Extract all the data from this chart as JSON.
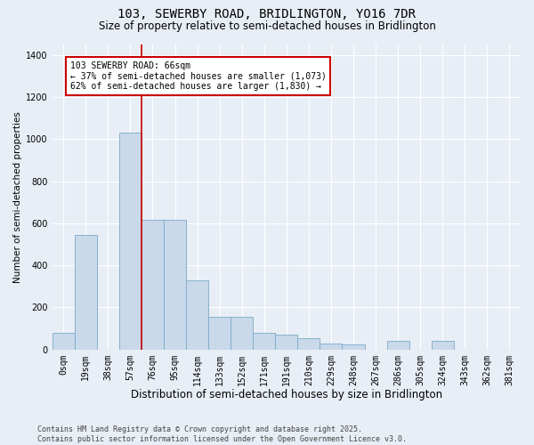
{
  "title": "103, SEWERBY ROAD, BRIDLINGTON, YO16 7DR",
  "subtitle": "Size of property relative to semi-detached houses in Bridlington",
  "xlabel": "Distribution of semi-detached houses by size in Bridlington",
  "ylabel": "Number of semi-detached properties",
  "categories": [
    "0sqm",
    "19sqm",
    "38sqm",
    "57sqm",
    "76sqm",
    "95sqm",
    "114sqm",
    "133sqm",
    "152sqm",
    "171sqm",
    "191sqm",
    "210sqm",
    "229sqm",
    "248sqm",
    "267sqm",
    "286sqm",
    "305sqm",
    "324sqm",
    "343sqm",
    "362sqm",
    "381sqm"
  ],
  "values": [
    80,
    545,
    0,
    1030,
    615,
    615,
    330,
    155,
    155,
    80,
    70,
    55,
    30,
    25,
    0,
    40,
    0,
    40,
    0,
    0,
    0
  ],
  "bar_color": "#c9d9ea",
  "bar_edge_color": "#7aaac8",
  "ref_line_x": 3.5,
  "ref_line_label": "103 SEWERBY ROAD: 66sqm",
  "annotation_line1": "← 37% of semi-detached houses are smaller (1,073)",
  "annotation_line2": "62% of semi-detached houses are larger (1,830) →",
  "annotation_box_color": "#ffffff",
  "annotation_box_edge": "#cc0000",
  "ref_line_color": "#cc0000",
  "ylim": [
    0,
    1450
  ],
  "yticks": [
    0,
    200,
    400,
    600,
    800,
    1000,
    1200,
    1400
  ],
  "bg_color": "#e8eef5",
  "grid_color": "#ffffff",
  "footer": "Contains HM Land Registry data © Crown copyright and database right 2025.\nContains public sector information licensed under the Open Government Licence v3.0.",
  "title_fontsize": 10,
  "subtitle_fontsize": 8.5,
  "xlabel_fontsize": 8.5,
  "ylabel_fontsize": 7.5,
  "tick_fontsize": 7,
  "footer_fontsize": 6
}
